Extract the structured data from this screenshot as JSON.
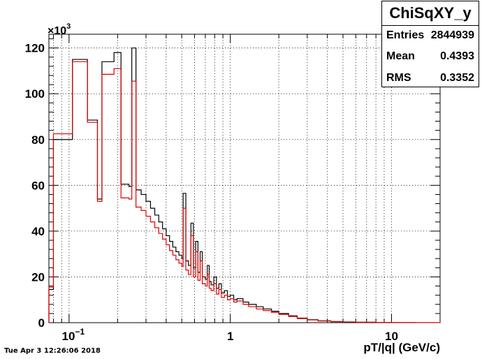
{
  "stats_box": {
    "title": "ChiSqXY_y",
    "entries_label": "Entries",
    "entries_value": "2844939",
    "mean_label": "Mean",
    "mean_value": "0.4393",
    "rms_label": "RMS",
    "rms_value": "0.3352"
  },
  "timestamp": "Tue Apr  3 12:26:06 2018",
  "chart_data": {
    "type": "line",
    "title": "ChiSqXY_y",
    "xlabel": "pT/|q| (GeV/c)",
    "ylabel": "",
    "y_multiplier_label": "×10",
    "y_multiplier_exp": "3",
    "x_scale": "log",
    "xlim": [
      0.075,
      20
    ],
    "ylim": [
      0,
      126
    ],
    "grid": true,
    "x_ticks": [
      {
        "v": 0.1,
        "label": "10",
        "exp": "−1"
      },
      {
        "v": 1,
        "label": "1"
      },
      {
        "v": 10,
        "label": "10"
      }
    ],
    "y_ticks": [
      0,
      20,
      40,
      60,
      80,
      100,
      120
    ],
    "series": [
      {
        "color": "#000000",
        "points": [
          [
            0.075,
            14.5
          ],
          [
            0.08,
            80
          ],
          [
            0.105,
            115
          ],
          [
            0.13,
            88.5
          ],
          [
            0.15,
            54
          ],
          [
            0.16,
            114
          ],
          [
            0.19,
            118
          ],
          [
            0.21,
            60.5
          ],
          [
            0.235,
            59.5
          ],
          [
            0.245,
            120
          ],
          [
            0.26,
            58
          ],
          [
            0.28,
            56
          ],
          [
            0.3,
            53
          ],
          [
            0.32,
            50
          ],
          [
            0.34,
            47
          ],
          [
            0.36,
            44
          ],
          [
            0.38,
            41
          ],
          [
            0.4,
            38
          ],
          [
            0.42,
            35.5
          ],
          [
            0.44,
            33
          ],
          [
            0.46,
            31
          ],
          [
            0.48,
            29.5
          ],
          [
            0.5,
            28
          ],
          [
            0.51,
            56.5
          ],
          [
            0.53,
            27
          ],
          [
            0.55,
            25
          ],
          [
            0.57,
            43.5
          ],
          [
            0.59,
            24
          ],
          [
            0.61,
            35.5
          ],
          [
            0.63,
            22
          ],
          [
            0.65,
            31
          ],
          [
            0.67,
            20
          ],
          [
            0.7,
            19
          ],
          [
            0.72,
            25
          ],
          [
            0.74,
            18
          ],
          [
            0.76,
            16.5
          ],
          [
            0.79,
            20
          ],
          [
            0.82,
            15
          ],
          [
            0.85,
            17
          ],
          [
            0.88,
            13
          ],
          [
            0.92,
            14
          ],
          [
            0.96,
            11.5
          ],
          [
            1.0,
            12
          ],
          [
            1.05,
            10
          ],
          [
            1.1,
            10.5
          ],
          [
            1.2,
            9
          ],
          [
            1.3,
            8
          ],
          [
            1.45,
            7
          ],
          [
            1.6,
            6
          ],
          [
            1.8,
            5
          ],
          [
            2.0,
            4
          ],
          [
            2.3,
            3
          ],
          [
            2.6,
            2
          ],
          [
            3.0,
            1.3
          ],
          [
            3.5,
            0.8
          ],
          [
            4.2,
            0.5
          ],
          [
            5.0,
            0.3
          ],
          [
            6.0,
            0.2
          ],
          [
            8.0,
            0.1
          ],
          [
            10,
            0.05
          ],
          [
            14,
            0.02
          ]
        ]
      },
      {
        "color": "#dd0000",
        "points": [
          [
            0.075,
            15.5
          ],
          [
            0.08,
            82.5
          ],
          [
            0.105,
            114
          ],
          [
            0.13,
            87.5
          ],
          [
            0.15,
            53
          ],
          [
            0.16,
            108.5
          ],
          [
            0.19,
            111
          ],
          [
            0.21,
            54.5
          ],
          [
            0.235,
            54
          ],
          [
            0.245,
            105.5
          ],
          [
            0.26,
            50.5
          ],
          [
            0.28,
            49
          ],
          [
            0.3,
            46.5
          ],
          [
            0.32,
            44
          ],
          [
            0.34,
            41.5
          ],
          [
            0.36,
            39
          ],
          [
            0.38,
            36.5
          ],
          [
            0.4,
            34
          ],
          [
            0.42,
            31.5
          ],
          [
            0.44,
            29.5
          ],
          [
            0.46,
            27.5
          ],
          [
            0.48,
            26
          ],
          [
            0.5,
            24.5
          ],
          [
            0.51,
            50
          ],
          [
            0.53,
            23
          ],
          [
            0.55,
            21
          ],
          [
            0.57,
            38
          ],
          [
            0.59,
            20
          ],
          [
            0.61,
            31
          ],
          [
            0.63,
            18.5
          ],
          [
            0.65,
            27
          ],
          [
            0.67,
            17
          ],
          [
            0.7,
            16
          ],
          [
            0.72,
            21
          ],
          [
            0.74,
            15
          ],
          [
            0.76,
            14
          ],
          [
            0.79,
            17
          ],
          [
            0.82,
            12.5
          ],
          [
            0.85,
            14.5
          ],
          [
            0.88,
            11
          ],
          [
            0.92,
            12
          ],
          [
            0.96,
            10
          ],
          [
            1.0,
            10.5
          ],
          [
            1.05,
            9
          ],
          [
            1.1,
            9.5
          ],
          [
            1.2,
            8
          ],
          [
            1.3,
            7
          ],
          [
            1.45,
            6
          ],
          [
            1.6,
            5.3
          ],
          [
            1.8,
            4.5
          ],
          [
            2.0,
            3.6
          ],
          [
            2.3,
            2.7
          ],
          [
            2.6,
            1.8
          ],
          [
            3.0,
            1.2
          ],
          [
            3.5,
            0.7
          ],
          [
            4.2,
            0.4
          ],
          [
            5.0,
            0.25
          ],
          [
            6.0,
            0.15
          ],
          [
            8.0,
            0.08
          ],
          [
            10,
            0.04
          ],
          [
            14,
            0.02
          ]
        ]
      }
    ]
  }
}
